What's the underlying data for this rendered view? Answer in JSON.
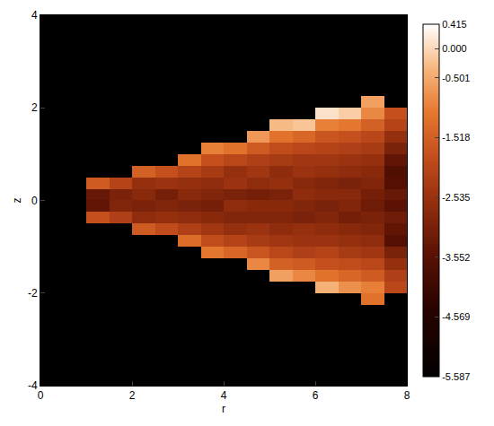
{
  "chart_data": {
    "type": "heatmap",
    "x_label": "r",
    "y_label": "z",
    "xlim": [
      0,
      8
    ],
    "ylim": [
      -4,
      4
    ],
    "xticks": [
      0,
      2,
      4,
      6,
      8
    ],
    "yticks": [
      -4,
      -2,
      0,
      2,
      4
    ],
    "x": [
      1.25,
      1.75,
      2.25,
      2.75,
      3.25,
      3.75,
      4.25,
      4.75,
      5.25,
      5.75,
      6.25,
      6.75,
      7.25,
      7.75
    ],
    "y": [
      -2.375,
      -2.125,
      -1.875,
      -1.625,
      -1.375,
      -1.125,
      -0.875,
      -0.625,
      -0.375,
      -0.125,
      0.125,
      0.375,
      0.625,
      0.875,
      1.125,
      1.375,
      1.625,
      1.875,
      2.125,
      2.375
    ],
    "z": [
      [
        null,
        null,
        null,
        null,
        null,
        null,
        null,
        null,
        null,
        null,
        null,
        null,
        null,
        null
      ],
      [
        null,
        null,
        null,
        null,
        null,
        null,
        null,
        null,
        null,
        null,
        null,
        null,
        -1.2,
        null
      ],
      [
        null,
        null,
        null,
        null,
        null,
        null,
        null,
        null,
        null,
        null,
        -0.4,
        -0.8,
        -1.0,
        -2.0
      ],
      [
        null,
        null,
        null,
        null,
        null,
        null,
        null,
        null,
        -0.6,
        -0.9,
        -1.2,
        -1.4,
        -1.6,
        -2.2
      ],
      [
        null,
        null,
        null,
        null,
        null,
        null,
        null,
        -0.9,
        -1.5,
        -1.6,
        -1.8,
        -1.9,
        -2.0,
        -2.6
      ],
      [
        null,
        null,
        null,
        null,
        null,
        -1.1,
        -1.4,
        -1.7,
        -2.0,
        -2.2,
        -2.1,
        -2.3,
        -2.4,
        -3.0
      ],
      [
        null,
        null,
        null,
        null,
        -1.3,
        -1.9,
        -2.1,
        -2.3,
        -2.4,
        -2.5,
        -2.5,
        -2.6,
        -2.7,
        -3.6
      ],
      [
        null,
        null,
        -1.6,
        -1.9,
        -2.2,
        -2.4,
        -2.6,
        -2.5,
        -2.7,
        -2.6,
        -2.7,
        -2.8,
        -2.9,
        -3.4
      ],
      [
        -1.8,
        -2.2,
        -2.7,
        -2.6,
        -2.7,
        -2.8,
        -2.9,
        -2.9,
        -2.9,
        -3.0,
        -2.9,
        -3.1,
        -3.0,
        -3.2
      ],
      [
        -3.4,
        -2.9,
        -3.0,
        -2.9,
        -3.0,
        -3.1,
        -2.7,
        -2.8,
        -2.8,
        -2.9,
        -3.0,
        -2.9,
        -3.2,
        -3.5
      ],
      [
        -3.3,
        -3.0,
        -2.8,
        -3.1,
        -2.8,
        -2.9,
        -3.0,
        -3.1,
        -3.0,
        -2.7,
        -2.8,
        -2.8,
        -3.1,
        -3.3
      ],
      [
        -1.6,
        -2.1,
        -2.6,
        -2.5,
        -2.6,
        -2.7,
        -2.5,
        -2.7,
        -2.6,
        -2.8,
        -2.9,
        -3.0,
        -2.9,
        -3.6
      ],
      [
        null,
        null,
        -1.5,
        -1.8,
        -2.1,
        -2.3,
        -2.6,
        -2.4,
        -2.7,
        -2.5,
        -2.6,
        -2.7,
        -2.8,
        -3.7
      ],
      [
        null,
        null,
        null,
        null,
        -1.2,
        -1.8,
        -2.0,
        -2.2,
        -2.3,
        -2.4,
        -2.4,
        -2.5,
        -2.6,
        -3.4
      ],
      [
        null,
        null,
        null,
        null,
        null,
        -1.0,
        -1.2,
        -1.6,
        -1.9,
        -2.0,
        -2.1,
        -2.2,
        -2.3,
        -3.0
      ],
      [
        null,
        null,
        null,
        null,
        null,
        null,
        null,
        -0.7,
        -1.2,
        -1.4,
        -1.7,
        -1.8,
        -2.0,
        -2.6
      ],
      [
        null,
        null,
        null,
        null,
        null,
        null,
        null,
        null,
        -0.3,
        -0.2,
        -1.0,
        -1.1,
        -1.5,
        -2.1
      ],
      [
        null,
        null,
        null,
        null,
        null,
        null,
        null,
        null,
        null,
        null,
        0.1,
        -0.1,
        -0.9,
        -1.8
      ],
      [
        null,
        null,
        null,
        null,
        null,
        null,
        null,
        null,
        null,
        null,
        null,
        null,
        -0.6,
        null
      ],
      [
        null,
        null,
        null,
        null,
        null,
        null,
        null,
        null,
        null,
        null,
        null,
        null,
        null,
        null
      ]
    ],
    "colorbar": {
      "range": [
        -5.587,
        0.415
      ],
      "ticks": [
        0.415,
        {
          "value": 0,
          "label": "0.000"
        },
        -0.501,
        -1.518,
        -2.535,
        -3.552,
        -4.569,
        -5.587
      ]
    }
  }
}
